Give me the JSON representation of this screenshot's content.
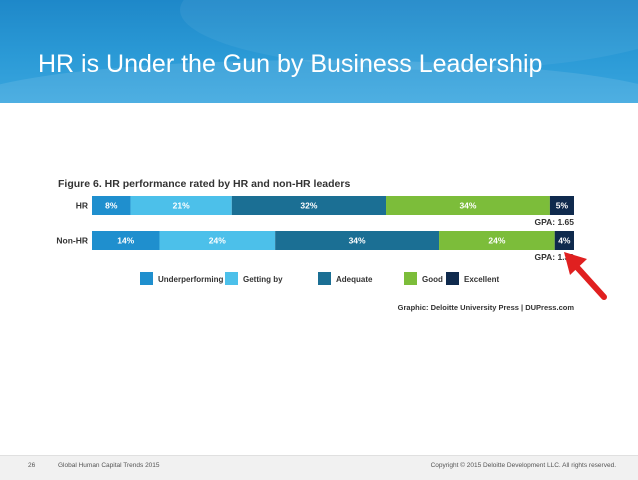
{
  "slide": {
    "title": "HR is Under the Gun by Business Leadership",
    "slide_number": "26",
    "footer_left": "Global Human Capital Trends 2015",
    "footer_right": "Copyright © 2015 Deloitte Development LLC. All rights reserved."
  },
  "figure": {
    "source": "Graphic: Deloitte University Press  |  DUPress.com"
  },
  "colors": {
    "header": "#1e88c9",
    "arrow": "#e02020"
  },
  "chart_data": {
    "type": "bar",
    "orientation": "horizontal",
    "stacked": true,
    "title": "Figure 6. HR performance rated by HR and non-HR leaders",
    "categories": [
      "HR",
      "Non-HR"
    ],
    "series": [
      {
        "name": "Underperforming",
        "color": "#1f8fce",
        "values": [
          8,
          14
        ]
      },
      {
        "name": "Getting by",
        "color": "#4cc0ea",
        "values": [
          21,
          24
        ]
      },
      {
        "name": "Adequate",
        "color": "#1b6f94",
        "values": [
          32,
          34
        ]
      },
      {
        "name": "Good",
        "color": "#7cbd3a",
        "values": [
          34,
          24
        ]
      },
      {
        "name": "Excellent",
        "color": "#0f2a4d",
        "values": [
          5,
          4
        ]
      }
    ],
    "value_labels": [
      [
        "8%",
        "21%",
        "32%",
        "34%",
        "5%"
      ],
      [
        "14%",
        "24%",
        "34%",
        "24%",
        "4%"
      ]
    ],
    "gpa_labels": [
      "GPA: 1.65",
      "GPA: 1.32"
    ],
    "xlim": [
      0,
      100
    ],
    "legend_position": "bottom"
  }
}
